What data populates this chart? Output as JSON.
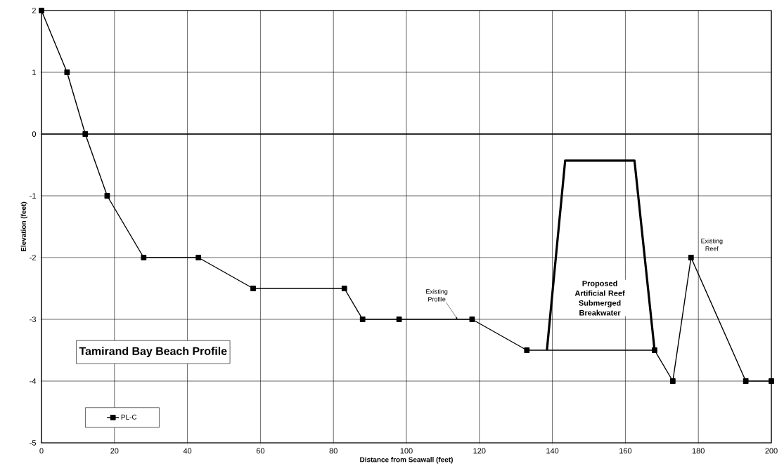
{
  "chart_data": {
    "type": "line",
    "title": "Tamirand Bay Beach Profile",
    "xlabel": "Distance from Seawall (feet)",
    "ylabel": "Elevation (feet)",
    "series": [
      {
        "name": "PL-C",
        "color": "#000000",
        "marker": "square",
        "x": [
          0,
          7,
          12,
          18,
          28,
          43,
          58,
          83,
          88,
          98,
          118,
          133,
          168,
          173,
          178,
          193,
          200
        ],
        "values": [
          2,
          1,
          0,
          -1,
          -2,
          -2,
          -2.5,
          -2.5,
          -3,
          -3,
          -3,
          -3.5,
          -3.5,
          -4,
          -2,
          -4,
          -4
        ]
      },
      {
        "color": "#000000",
        "marker": "none",
        "x": [
          138.5,
          143.5,
          162.5,
          168
        ],
        "values": [
          -3.5,
          -0.43,
          -0.43,
          -3.5
        ]
      }
    ],
    "xlim": [
      0,
      200
    ],
    "ylim": [
      -5,
      2
    ],
    "xticks": [
      0,
      20,
      40,
      60,
      80,
      100,
      120,
      140,
      160,
      180,
      200
    ],
    "yticks": [
      -5,
      -4,
      -3,
      -2,
      -1,
      0,
      1,
      2
    ],
    "ref_lines": [
      {
        "axis": "y",
        "value": 0,
        "color": "#000000"
      }
    ],
    "annotations": [
      {
        "text": "Existing Profile",
        "x": 114,
        "y": -3
      },
      "Proposed Artificial Reef Submerged Breakwater",
      {
        "text": "Existing Reef",
        "x": 178,
        "y": -2
      }
    ],
    "grid": true,
    "legend": "bottom left"
  }
}
